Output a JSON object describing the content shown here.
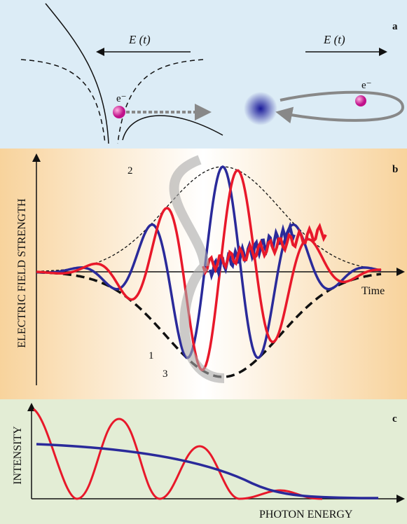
{
  "panel_a": {
    "label": "a",
    "field_left": "E (t)",
    "field_right": "E (t)",
    "electron_left": "e⁻",
    "electron_right": "e⁻"
  },
  "panel_b": {
    "label": "b",
    "y_axis": "ELECTRIC FIELD STRENGTH",
    "x_axis": "Time",
    "markers": [
      "1",
      "2",
      "3"
    ]
  },
  "panel_c": {
    "label": "c",
    "y_axis": "INTENSITY",
    "x_axis": "PHOTON ENERGY"
  }
}
